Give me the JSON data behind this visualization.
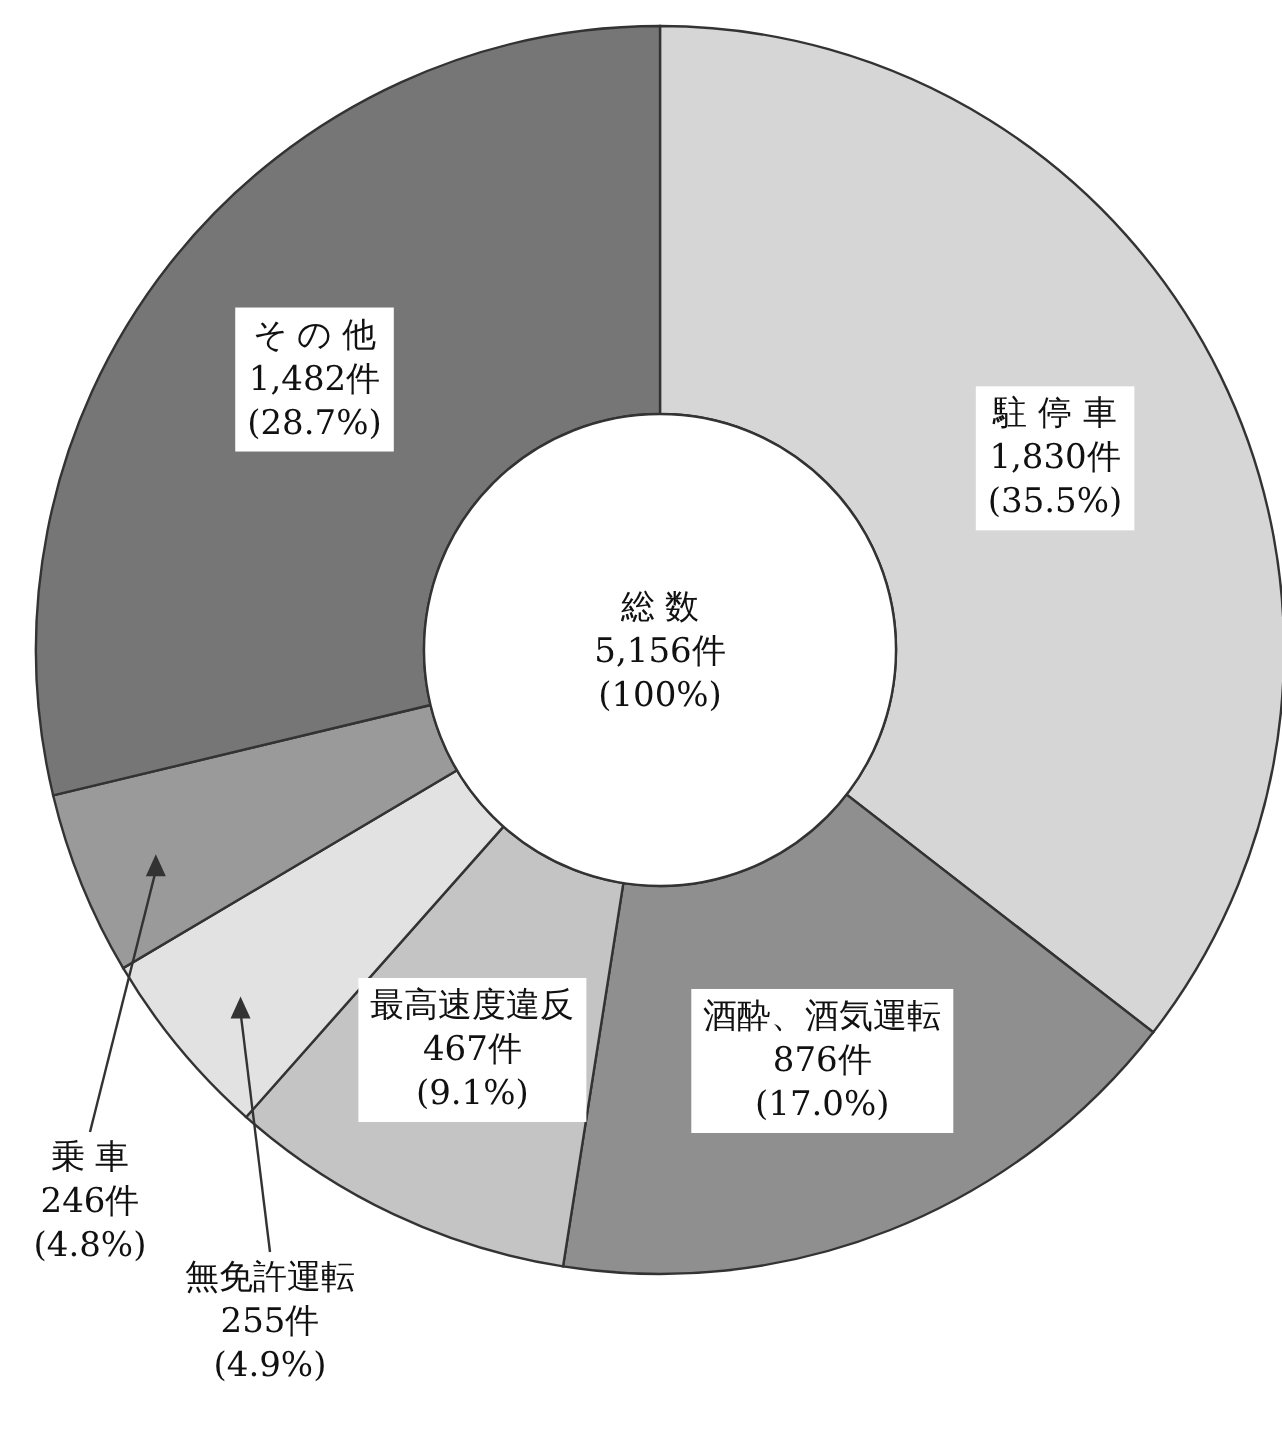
{
  "chart_data": {
    "type": "donut",
    "categories": [
      "駐 停 車",
      "酒酔、酒気運転",
      "最高速度違反",
      "無免許運転",
      "乗 車",
      "そ の 他"
    ],
    "values": [
      1830,
      876,
      467,
      255,
      246,
      1482
    ],
    "colors": [
      "#d6d6d6",
      "#8f8f8f",
      "#c4c4c4",
      "#e2e2e2",
      "#9a9a9a",
      "#767676"
    ],
    "value_labels": [
      "1,830件 (35.5%)",
      "876件 (17.0%)",
      "467件 (9.1%)",
      "255件 (4.9%)",
      "246件 (4.8%)",
      "1,482件 (28.7%)"
    ],
    "annotations": [
      "総 数",
      "5,156件",
      "(100%)"
    ]
  }
}
